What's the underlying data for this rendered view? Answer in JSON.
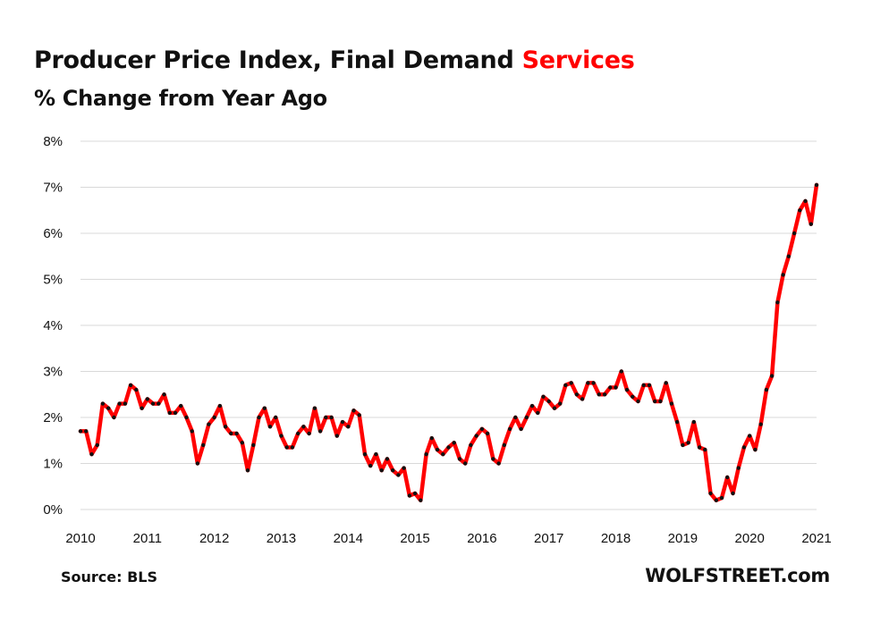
{
  "title": {
    "main": "Producer Price Index, Final Demand",
    "highlight": "Services",
    "subtitle": "% Change from Year Ago"
  },
  "footer": {
    "source": "Source: BLS",
    "brand": "WOLFSTREET.com"
  },
  "colors": {
    "line": "#ff0000",
    "marker": "#111111",
    "grid": "#d9d9d9",
    "accent": "#ff0000"
  },
  "chart_data": {
    "type": "line",
    "title": "Producer Price Index, Final Demand Services",
    "subtitle": "% Change from Year Ago",
    "xlabel": "",
    "ylabel": "",
    "x_ticks": [
      "2010",
      "2011",
      "2012",
      "2013",
      "2014",
      "2015",
      "2016",
      "2017",
      "2018",
      "2019",
      "2020",
      "2021"
    ],
    "y_ticks": [
      "0%",
      "1%",
      "2%",
      "3%",
      "4%",
      "5%",
      "6%",
      "7%",
      "8%"
    ],
    "ylim": [
      0,
      8
    ],
    "xlim": [
      2010,
      2021
    ],
    "grid": "horizontal",
    "start": "2010-01",
    "frequency": "monthly",
    "series": [
      {
        "values": [
          1.7,
          1.7,
          1.2,
          1.4,
          2.3,
          2.2,
          2.0,
          2.3,
          2.3,
          2.7,
          2.6,
          2.2,
          2.4,
          2.3,
          2.3,
          2.5,
          2.1,
          2.1,
          2.25,
          2.0,
          1.7,
          1.0,
          1.4,
          1.85,
          2.0,
          2.25,
          1.8,
          1.65,
          1.65,
          1.45,
          0.85,
          1.4,
          2.0,
          2.2,
          1.8,
          2.0,
          1.6,
          1.35,
          1.35,
          1.65,
          1.8,
          1.65,
          2.2,
          1.7,
          2.0,
          2.0,
          1.6,
          1.9,
          1.8,
          2.15,
          2.05,
          1.2,
          0.95,
          1.2,
          0.85,
          1.1,
          0.85,
          0.75,
          0.9,
          0.3,
          0.35,
          0.2,
          1.2,
          1.55,
          1.3,
          1.2,
          1.35,
          1.45,
          1.1,
          1.0,
          1.4,
          1.6,
          1.75,
          1.65,
          1.1,
          1.0,
          1.4,
          1.75,
          2.0,
          1.75,
          2.0,
          2.25,
          2.1,
          2.45,
          2.35,
          2.2,
          2.3,
          2.7,
          2.75,
          2.5,
          2.4,
          2.75,
          2.75,
          2.5,
          2.5,
          2.65,
          2.65,
          3.0,
          2.6,
          2.45,
          2.35,
          2.7,
          2.7,
          2.35,
          2.35,
          2.75,
          2.3,
          1.9,
          1.4,
          1.45,
          1.9,
          1.35,
          1.3,
          0.35,
          0.2,
          0.25,
          0.7,
          0.35,
          0.9,
          1.35,
          1.6,
          1.3,
          1.85,
          2.6,
          2.9,
          4.5,
          5.1,
          5.5,
          6.0,
          6.5,
          6.7,
          6.2,
          7.05
        ]
      }
    ]
  }
}
